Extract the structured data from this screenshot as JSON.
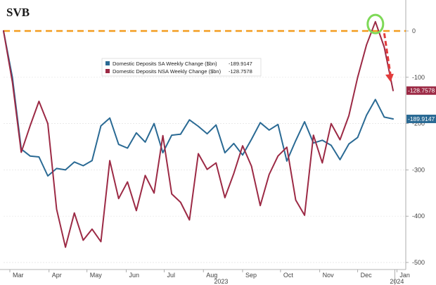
{
  "chart_data": {
    "type": "line",
    "title": "SVB",
    "xlabel": "",
    "ylabel": "",
    "ylim": [
      -510,
      40
    ],
    "y_ticks": [
      0,
      -100,
      -200,
      -300,
      -400,
      -500
    ],
    "y_tick_labels": [
      "0",
      "-100",
      "-200",
      "-300",
      "-400",
      "-500"
    ],
    "x_axis_start": "2023-02-24",
    "x_axis_end": "2024-01-08",
    "month_ticks": [
      {
        "label": "Mar",
        "date": "2023-03-01"
      },
      {
        "label": "Apr",
        "date": "2023-04-01"
      },
      {
        "label": "May",
        "date": "2023-05-01"
      },
      {
        "label": "Jun",
        "date": "2023-06-01"
      },
      {
        "label": "Jul",
        "date": "2023-07-01"
      },
      {
        "label": "Aug",
        "date": "2023-08-01"
      },
      {
        "label": "Sep",
        "date": "2023-09-01"
      },
      {
        "label": "Oct",
        "date": "2023-10-01"
      },
      {
        "label": "Nov",
        "date": "2023-11-01"
      },
      {
        "label": "Dec",
        "date": "2023-12-01"
      },
      {
        "label": "Jan",
        "date": "2024-01-01"
      }
    ],
    "year_labels": [
      {
        "label": "2023",
        "date": "2023-08-15"
      },
      {
        "label": "2024",
        "date": "2024-01-01"
      }
    ],
    "reference_line": {
      "y": 0,
      "color": "#f39c1e"
    },
    "legend": {
      "placement": "upper-center"
    },
    "series": [
      {
        "name": "Domestic Deposits SA Weekly Change ($bn)",
        "legend_value": "-189.9147",
        "last_value_label": "-189.9147",
        "color": "#2a6a94",
        "x": [
          "2023-02-24",
          "2023-03-03",
          "2023-03-10",
          "2023-03-17",
          "2023-03-24",
          "2023-03-31",
          "2023-04-07",
          "2023-04-14",
          "2023-04-21",
          "2023-04-28",
          "2023-05-05",
          "2023-05-12",
          "2023-05-19",
          "2023-05-26",
          "2023-06-02",
          "2023-06-09",
          "2023-06-16",
          "2023-06-23",
          "2023-06-30",
          "2023-07-07",
          "2023-07-14",
          "2023-07-21",
          "2023-07-28",
          "2023-08-04",
          "2023-08-11",
          "2023-08-18",
          "2023-08-25",
          "2023-09-01",
          "2023-09-08",
          "2023-09-15",
          "2023-09-22",
          "2023-09-29",
          "2023-10-06",
          "2023-10-13",
          "2023-10-20",
          "2023-10-27",
          "2023-11-03",
          "2023-11-10",
          "2023-11-17",
          "2023-11-24",
          "2023-12-01",
          "2023-12-08",
          "2023-12-15",
          "2023-12-22",
          "2023-12-29"
        ],
        "values": [
          0,
          -100,
          -255,
          -270,
          -272,
          -313,
          -297,
          -300,
          -283,
          -291,
          -280,
          -205,
          -188,
          -245,
          -253,
          -220,
          -240,
          -200,
          -263,
          -225,
          -223,
          -192,
          -206,
          -222,
          -203,
          -263,
          -243,
          -268,
          -234,
          -198,
          -214,
          -202,
          -281,
          -237,
          -196,
          -242,
          -236,
          -247,
          -278,
          -244,
          -230,
          -182,
          -148,
          -186,
          -189.9147
        ]
      },
      {
        "name": "Domestic Deposits NSA Weekly Change ($bn)",
        "legend_value": "-128.7578",
        "last_value_label": "-128.7578",
        "color": "#9c2a45",
        "x": [
          "2023-02-24",
          "2023-03-03",
          "2023-03-10",
          "2023-03-17",
          "2023-03-24",
          "2023-03-31",
          "2023-04-07",
          "2023-04-14",
          "2023-04-21",
          "2023-04-28",
          "2023-05-05",
          "2023-05-12",
          "2023-05-19",
          "2023-05-26",
          "2023-06-02",
          "2023-06-09",
          "2023-06-16",
          "2023-06-23",
          "2023-06-30",
          "2023-07-07",
          "2023-07-14",
          "2023-07-21",
          "2023-07-28",
          "2023-08-04",
          "2023-08-11",
          "2023-08-18",
          "2023-08-25",
          "2023-09-01",
          "2023-09-08",
          "2023-09-15",
          "2023-09-22",
          "2023-09-29",
          "2023-10-06",
          "2023-10-13",
          "2023-10-20",
          "2023-10-27",
          "2023-11-03",
          "2023-11-10",
          "2023-11-17",
          "2023-11-24",
          "2023-12-01",
          "2023-12-08",
          "2023-12-15",
          "2023-12-22",
          "2023-12-29"
        ],
        "values": [
          0,
          -110,
          -262,
          -205,
          -152,
          -200,
          -385,
          -467,
          -393,
          -452,
          -428,
          -455,
          -280,
          -362,
          -326,
          -388,
          -312,
          -350,
          -226,
          -352,
          -370,
          -408,
          -265,
          -299,
          -285,
          -360,
          -308,
          -248,
          -292,
          -377,
          -310,
          -270,
          -251,
          -365,
          -398,
          -225,
          -285,
          -200,
          -235,
          -183,
          -100,
          -30,
          20,
          -35,
          -128.7578
        ]
      }
    ],
    "annotations": [
      {
        "type": "circle",
        "date": "2023-12-15",
        "y": 15,
        "color": "#7ed957"
      },
      {
        "type": "arrow",
        "from_date": "2023-12-22",
        "from_y": -5,
        "to_date": "2023-12-27",
        "to_y": -110,
        "color": "#e23b3b",
        "style": "dashed"
      }
    ]
  }
}
